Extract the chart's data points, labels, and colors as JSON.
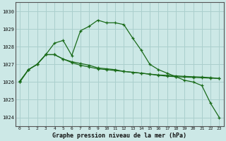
{
  "title": "Graphe pression niveau de la mer (hPa)",
  "bg_color": "#cce8e6",
  "grid_color": "#aacfcd",
  "line_color": "#1a6b1a",
  "x_labels": [
    "0",
    "1",
    "2",
    "3",
    "4",
    "5",
    "6",
    "7",
    "8",
    "9",
    "10",
    "11",
    "12",
    "13",
    "14",
    "15",
    "16",
    "17",
    "18",
    "19",
    "20",
    "21",
    "22",
    "23"
  ],
  "ylim": [
    1023.5,
    1030.5
  ],
  "yticks": [
    1024,
    1025,
    1026,
    1027,
    1028,
    1029,
    1030
  ],
  "series": [
    [
      1026.0,
      1026.7,
      1027.0,
      1027.55,
      1028.2,
      1028.35,
      1027.5,
      1028.9,
      1029.15,
      1029.5,
      1029.35,
      1029.35,
      1029.25,
      1028.5,
      1027.8,
      1027.0,
      1026.7,
      1026.5,
      1026.3,
      1026.1,
      1026.0,
      1025.8,
      1024.8,
      1024.0
    ],
    [
      1026.0,
      1026.7,
      1027.0,
      1027.55,
      1027.55,
      1027.3,
      1027.15,
      1027.05,
      1026.95,
      1026.8,
      1026.75,
      1026.7,
      1026.6,
      1026.55,
      1026.5,
      1026.45,
      1026.4,
      1026.38,
      1026.35,
      1026.32,
      1026.3,
      1026.28,
      1026.25,
      1026.2
    ],
    [
      1026.05,
      1026.7,
      1027.0,
      1027.55,
      1027.55,
      1027.3,
      1027.1,
      1026.95,
      1026.85,
      1026.75,
      1026.7,
      1026.65,
      1026.6,
      1026.55,
      1026.5,
      1026.44,
      1026.38,
      1026.33,
      1026.3,
      1026.28,
      1026.26,
      1026.24,
      1026.22,
      1026.2
    ]
  ]
}
